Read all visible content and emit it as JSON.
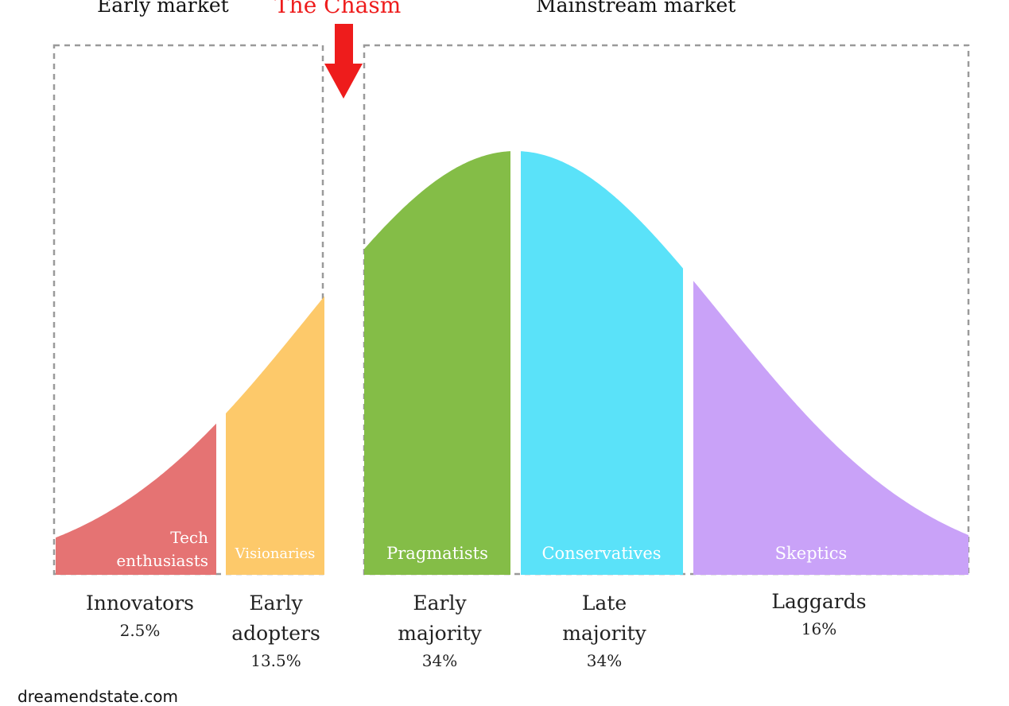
{
  "headers": {
    "early_market": "Early market",
    "chasm": "The Chasm",
    "mainstream_market": "Mainstream market"
  },
  "segments": [
    {
      "id": "innovators",
      "inner_label": "Tech enthusiasts",
      "group_name": "Innovators",
      "percent": "2.5%",
      "color": "#e57373"
    },
    {
      "id": "early-adopters",
      "inner_label": "Visionaries",
      "group_name": "Early adopters",
      "percent": "13.5%",
      "color": "#fdc96a"
    },
    {
      "id": "early-majority",
      "inner_label": "Pragmatists",
      "group_name": "Early majority",
      "percent": "34%",
      "color": "#84bd47"
    },
    {
      "id": "late-majority",
      "inner_label": "Conservatives",
      "group_name": "Late majority",
      "percent": "34%",
      "color": "#5ae2f9"
    },
    {
      "id": "laggards",
      "inner_label": "Skeptics",
      "group_name": "Laggards",
      "percent": "16%",
      "color": "#c9a2f8"
    }
  ],
  "colors": {
    "chasm_arrow": "#ee1c1c",
    "dashed_border": "#9a9a9a"
  },
  "credit": "dreamendstate.com"
}
